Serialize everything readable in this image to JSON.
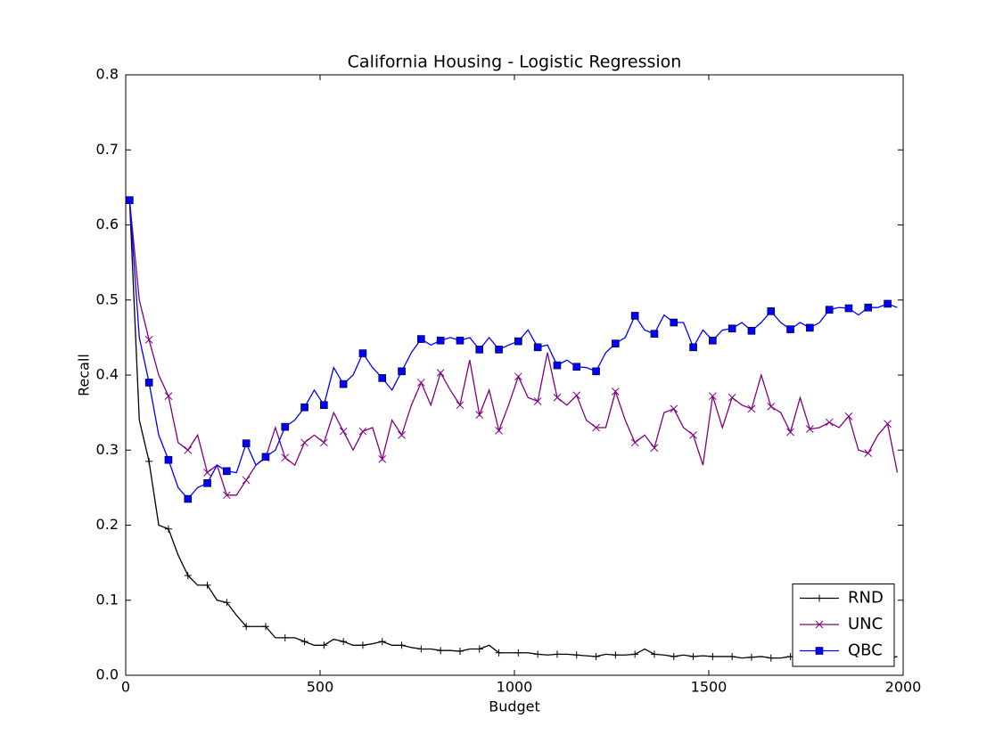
{
  "chart_data": {
    "type": "line",
    "title": "California Housing - Logistic Regression",
    "x_label": "Budget",
    "y_label": "Recall",
    "x": [
      10,
      35,
      60,
      85,
      110,
      135,
      160,
      185,
      210,
      235,
      260,
      285,
      310,
      335,
      360,
      385,
      410,
      435,
      460,
      485,
      510,
      535,
      560,
      585,
      610,
      635,
      660,
      685,
      710,
      735,
      760,
      785,
      810,
      835,
      860,
      885,
      910,
      935,
      960,
      985,
      1010,
      1035,
      1060,
      1085,
      1110,
      1135,
      1160,
      1185,
      1210,
      1235,
      1260,
      1285,
      1310,
      1335,
      1360,
      1385,
      1410,
      1435,
      1460,
      1485,
      1510,
      1535,
      1560,
      1585,
      1610,
      1635,
      1660,
      1685,
      1710,
      1735,
      1760,
      1785,
      1810,
      1835,
      1860,
      1885,
      1910,
      1935,
      1960,
      1985
    ],
    "series": [
      {
        "name": "RND",
        "color": "#000000",
        "marker": "+",
        "values": [
          0.633,
          0.34,
          0.285,
          0.2,
          0.195,
          0.16,
          0.133,
          0.12,
          0.12,
          0.1,
          0.097,
          0.08,
          0.065,
          0.065,
          0.065,
          0.05,
          0.05,
          0.05,
          0.045,
          0.04,
          0.04,
          0.048,
          0.045,
          0.04,
          0.04,
          0.042,
          0.045,
          0.04,
          0.04,
          0.037,
          0.035,
          0.035,
          0.033,
          0.033,
          0.032,
          0.035,
          0.035,
          0.04,
          0.03,
          0.03,
          0.03,
          0.03,
          0.028,
          0.027,
          0.028,
          0.028,
          0.027,
          0.026,
          0.025,
          0.028,
          0.027,
          0.027,
          0.028,
          0.035,
          0.028,
          0.027,
          0.025,
          0.027,
          0.025,
          0.026,
          0.025,
          0.025,
          0.025,
          0.023,
          0.024,
          0.025,
          0.023,
          0.023,
          0.025,
          0.022,
          0.023,
          0.022,
          0.022,
          0.022,
          0.022,
          0.022,
          0.023,
          0.022,
          0.022,
          0.025
        ]
      },
      {
        "name": "UNC",
        "color": "#800080",
        "marker": "x",
        "values": [
          0.633,
          0.5,
          0.447,
          0.4,
          0.372,
          0.31,
          0.3,
          0.32,
          0.27,
          0.28,
          0.24,
          0.24,
          0.26,
          0.28,
          0.29,
          0.33,
          0.29,
          0.28,
          0.31,
          0.32,
          0.31,
          0.35,
          0.325,
          0.3,
          0.325,
          0.33,
          0.288,
          0.34,
          0.32,
          0.36,
          0.39,
          0.36,
          0.403,
          0.38,
          0.36,
          0.42,
          0.347,
          0.38,
          0.326,
          0.36,
          0.398,
          0.37,
          0.365,
          0.43,
          0.37,
          0.36,
          0.373,
          0.34,
          0.33,
          0.33,
          0.378,
          0.34,
          0.31,
          0.32,
          0.303,
          0.35,
          0.355,
          0.33,
          0.32,
          0.28,
          0.372,
          0.33,
          0.37,
          0.36,
          0.355,
          0.4,
          0.358,
          0.35,
          0.324,
          0.37,
          0.328,
          0.33,
          0.337,
          0.33,
          0.345,
          0.3,
          0.296,
          0.32,
          0.335,
          0.27
        ]
      },
      {
        "name": "QBC",
        "color": "#0000ff",
        "marker": "s",
        "values": [
          0.633,
          0.45,
          0.39,
          0.32,
          0.287,
          0.25,
          0.235,
          0.25,
          0.256,
          0.28,
          0.272,
          0.27,
          0.309,
          0.28,
          0.291,
          0.3,
          0.331,
          0.34,
          0.357,
          0.38,
          0.36,
          0.41,
          0.388,
          0.4,
          0.429,
          0.41,
          0.396,
          0.38,
          0.405,
          0.43,
          0.448,
          0.44,
          0.446,
          0.45,
          0.446,
          0.45,
          0.434,
          0.45,
          0.434,
          0.44,
          0.445,
          0.46,
          0.437,
          0.44,
          0.413,
          0.42,
          0.411,
          0.41,
          0.405,
          0.43,
          0.442,
          0.45,
          0.479,
          0.46,
          0.455,
          0.48,
          0.47,
          0.47,
          0.437,
          0.46,
          0.446,
          0.46,
          0.462,
          0.47,
          0.459,
          0.47,
          0.485,
          0.47,
          0.461,
          0.47,
          0.463,
          0.47,
          0.487,
          0.49,
          0.489,
          0.48,
          0.49,
          0.49,
          0.495,
          0.49
        ]
      }
    ],
    "markevery": 2,
    "xlim": [
      0,
      2000
    ],
    "xticks": [
      0,
      500,
      1000,
      1500,
      2000
    ],
    "ylim": [
      0,
      0.8
    ],
    "yticks": [
      {
        "value": 0,
        "label": "0.0"
      },
      0.1,
      0.2,
      0.3,
      0.4,
      0.5,
      0.6,
      0.7,
      0.8
    ],
    "grid": false,
    "legend": "lower right"
  }
}
